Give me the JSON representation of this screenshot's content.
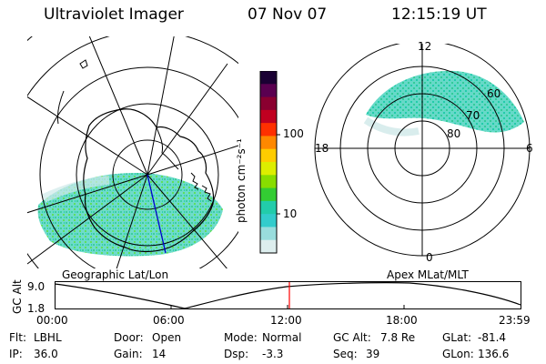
{
  "header": {
    "instrument": "Ultraviolet Imager",
    "date": "07 Nov 07",
    "time": "12:15:19 UT"
  },
  "colorbar": {
    "unit_label": "photon cm⁻²s⁻¹",
    "tick_100": "100",
    "tick_10": "10",
    "colors_top_to_bottom": [
      "#1a0033",
      "#5a0050",
      "#8a0030",
      "#c00020",
      "#ff3000",
      "#ff8800",
      "#ffcc00",
      "#ddee00",
      "#88dd00",
      "#33cc33",
      "#22ccaa",
      "#33cccc",
      "#99dddd",
      "#ddeeee"
    ]
  },
  "left_map": {
    "caption": "Geographic Lat/Lon"
  },
  "right_map": {
    "caption": "Apex MLat/MLT",
    "mlt_labels": {
      "top": "12",
      "left": "18",
      "right": "6",
      "bottom": "0"
    },
    "lat_labels": [
      "60",
      "70",
      "80"
    ]
  },
  "altitude_plot": {
    "ylabel": "GC Alt",
    "y_ticks": [
      "9.0",
      "1.8"
    ],
    "x_ticks": [
      "00:00",
      "06:00",
      "12:00",
      "18:00",
      "23:59"
    ],
    "marker_color": "#ff0000"
  },
  "status": {
    "row1": [
      {
        "key": "Flt:",
        "value": "LBHL"
      },
      {
        "key": "Door:",
        "value": "Open"
      },
      {
        "key": "Mode:",
        "value": "Normal"
      },
      {
        "key": "GC Alt:",
        "value": "7.8 Re"
      },
      {
        "key": "GLat:",
        "value": "-81.4"
      }
    ],
    "row2": [
      {
        "key": "IP:",
        "value": "36.0"
      },
      {
        "key": "Gain:",
        "value": "14"
      },
      {
        "key": "Dsp:",
        "value": "-3.3"
      },
      {
        "key": "Seq:",
        "value": "39"
      },
      {
        "key": "GLon:",
        "value": "136.6"
      }
    ]
  }
}
